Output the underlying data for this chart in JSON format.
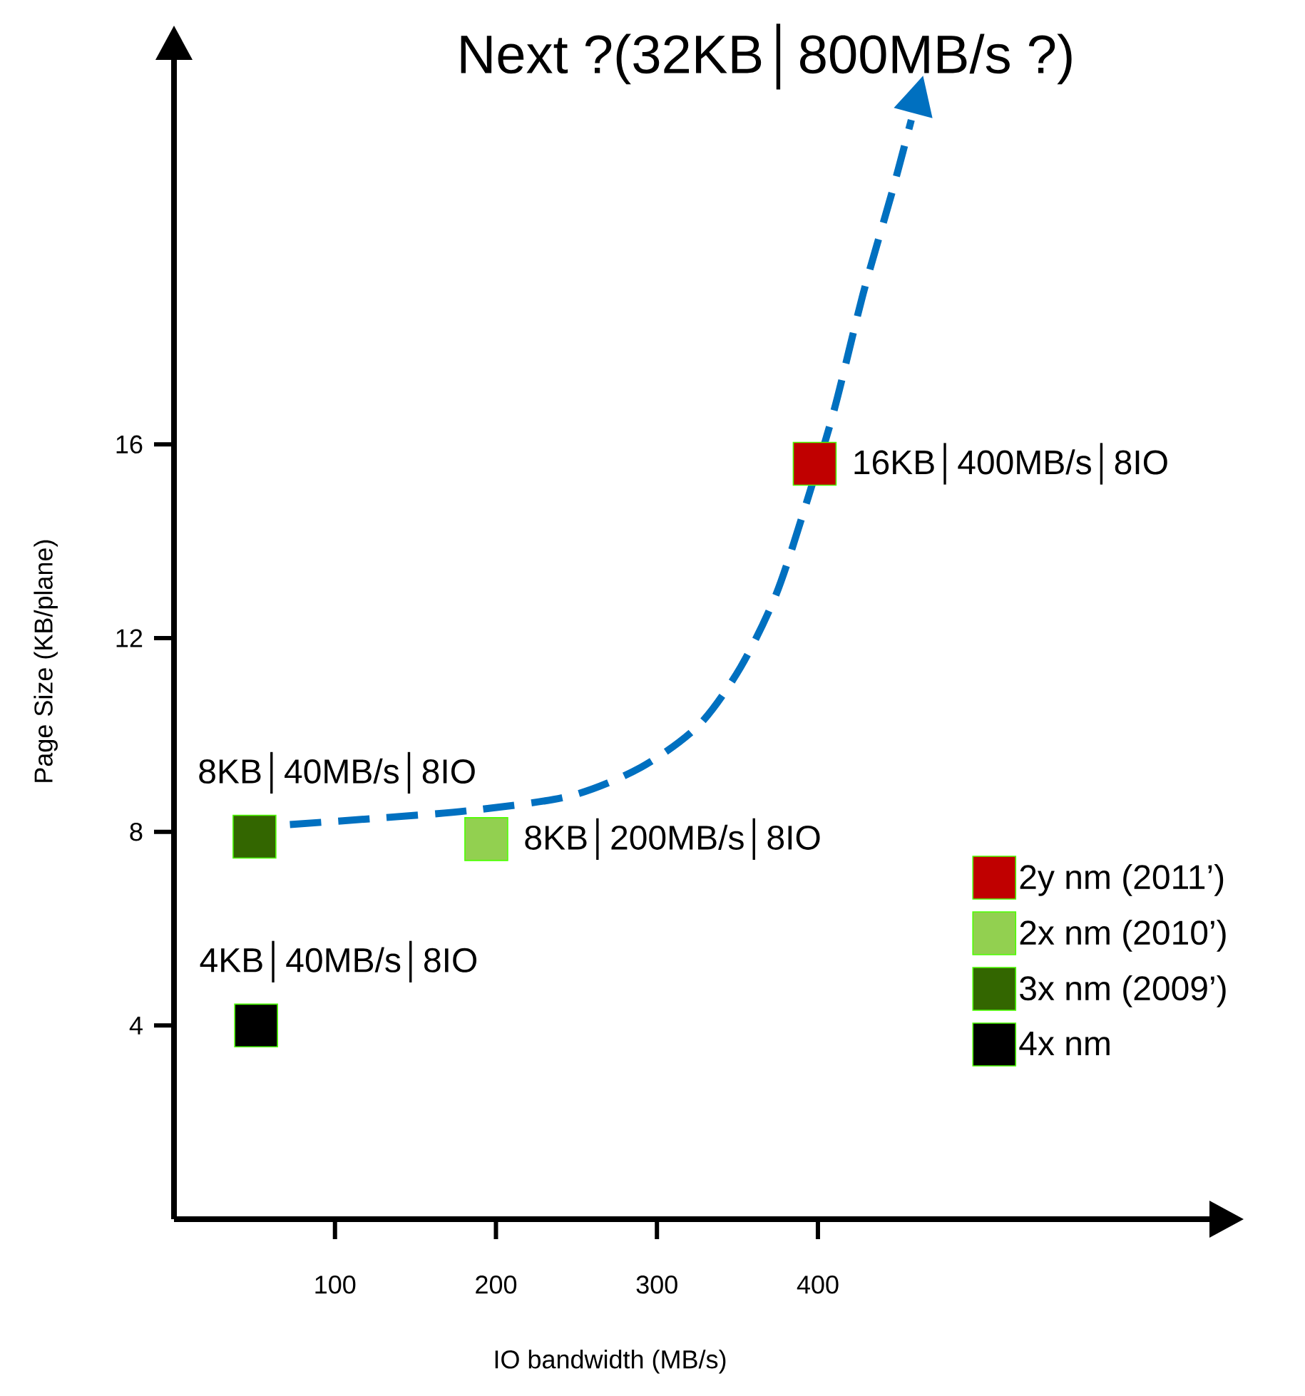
{
  "chart_data": {
    "type": "scatter",
    "title": "Next ?(32KB│800MB/s ?)",
    "xlabel": "IO bandwidth (MB/s)",
    "ylabel": "Page Size (KB/plane)",
    "xlim": [
      0,
      645
    ],
    "ylim": [
      0,
      24
    ],
    "xticks": [
      100,
      200,
      300,
      400
    ],
    "yticks": [
      4,
      8,
      12,
      16
    ],
    "marker": "square",
    "legend": "bottom right",
    "series": [
      {
        "name": "2y nm (2011’)",
        "color": "#c00000",
        "x": [
          398
        ],
        "values": [
          15.6
        ]
      },
      {
        "name": "2x nm (2010’)",
        "color": "#92d050",
        "x": [
          194
        ],
        "values": [
          7.85
        ]
      },
      {
        "name": "3x nm (2009’)",
        "color": "#336600",
        "x": [
          50
        ],
        "values": [
          7.9
        ]
      },
      {
        "name": "4x nm",
        "color": "#000000",
        "x": [
          51
        ],
        "values": [
          4
        ]
      },
      {
        "type": "line",
        "color": "#0070c0",
        "line_style": "dashed",
        "marker": "none",
        "x": [
          72,
          122,
          184,
          246,
          290,
          326,
          352,
          374,
          392,
          410,
          428,
          446,
          458
        ],
        "values": [
          8.15,
          8.27,
          8.44,
          8.74,
          9.33,
          10.2,
          11.4,
          12.9,
          14.7,
          16.7,
          19.1,
          21.2,
          22.7
        ]
      }
    ],
    "annotations": [
      {
        "text": "16KB│400MB/s│8IO",
        "x": 398,
        "y": 15.6
      },
      {
        "text": "8KB│40MB/s│8IO",
        "x": 50,
        "y": 7.9
      },
      {
        "text": "8KB│200MB/s│8IO",
        "x": 194,
        "y": 7.85
      },
      {
        "text": "4KB│40MB/s│8IO",
        "x": 51,
        "y": 4
      }
    ]
  }
}
